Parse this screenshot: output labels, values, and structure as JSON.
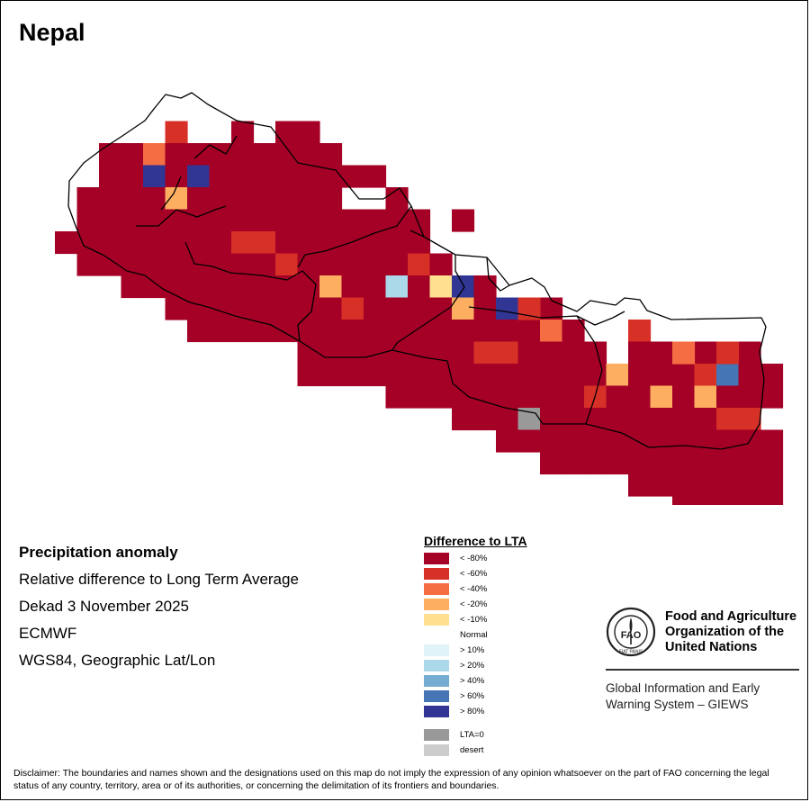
{
  "map": {
    "title": "Nepal",
    "product": "Precipitation anomaly",
    "description": "Relative difference to Long Term Average",
    "period": "Dekad 3 November 2025",
    "model": "ECMWF",
    "projection": "WGS84, Geographic Lat/Lon"
  },
  "legend": {
    "title": "Difference to LTA",
    "classes": [
      {
        "label": "< -80%",
        "color": "#a50026"
      },
      {
        "label": "< -60%",
        "color": "#d73027"
      },
      {
        "label": "< -40%",
        "color": "#f46d43"
      },
      {
        "label": "< -20%",
        "color": "#fdae61"
      },
      {
        "label": "< -10%",
        "color": "#fee090"
      },
      {
        "label": "Normal",
        "color": "#ffffff"
      },
      {
        "label": "> 10%",
        "color": "#e0f3f8"
      },
      {
        "label": "> 20%",
        "color": "#abd9e9"
      },
      {
        "label": "> 40%",
        "color": "#74add1"
      },
      {
        "label": "> 60%",
        "color": "#4575b4"
      },
      {
        "label": "> 80%",
        "color": "#313695"
      }
    ],
    "extra": [
      {
        "label": "LTA=0",
        "color": "#999999"
      },
      {
        "label": "desert",
        "color": "#cccccc"
      }
    ]
  },
  "organization": {
    "name_lines": [
      "Food and Agriculture",
      "Organization of the",
      "United Nations"
    ],
    "logo_text": "FAO",
    "logo_motto": "FIAT PANIS",
    "system_lines": [
      "Global Information and Early",
      "Warning System – GIEWS"
    ]
  },
  "disclaimer": "Disclaimer: The boundaries and names shown and the designations used on this map do not imply the expression of any opinion whatsoever on the part of FAO concerning the legal status of any country, territory, area or of its authorities, or concerning the delimitation of its frontiers and boundaries."
}
